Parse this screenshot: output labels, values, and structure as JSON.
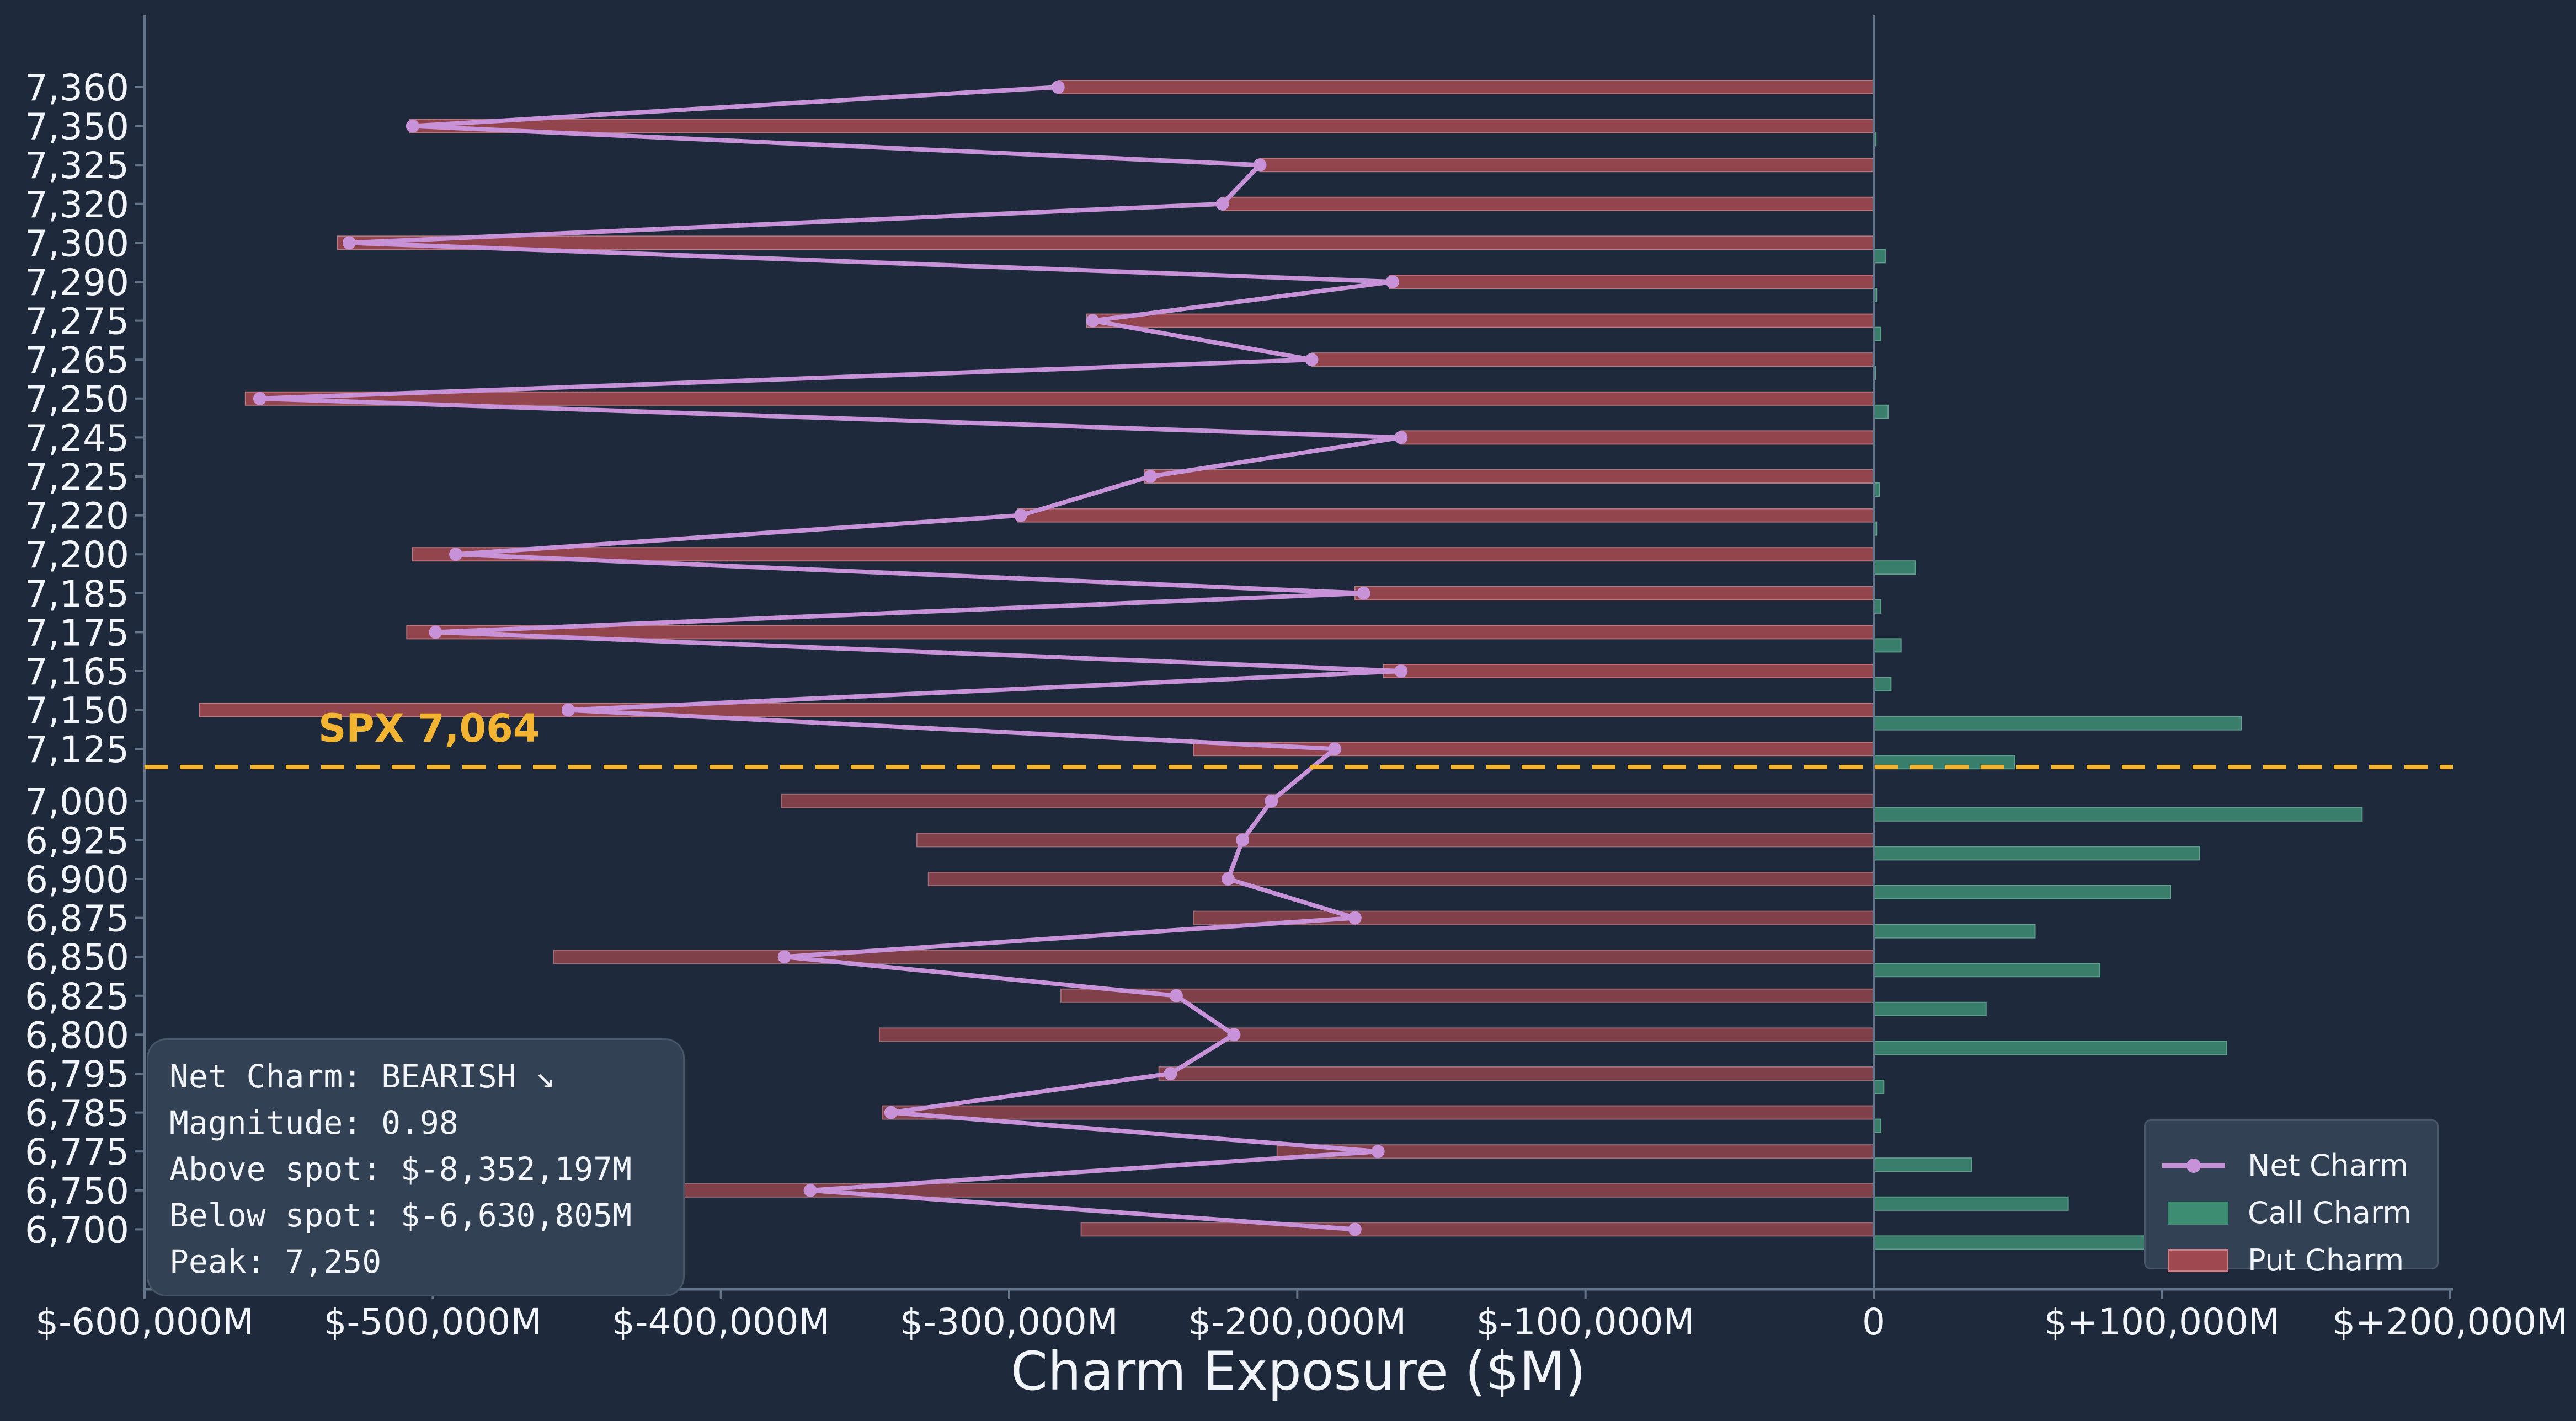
{
  "chart_data": {
    "type": "bar",
    "orientation": "horizontal",
    "xlabel": "Charm Exposure ($M)",
    "ylabel": "",
    "xlim": [
      -600000,
      200000
    ],
    "xticks": [
      -600000,
      -500000,
      -400000,
      -300000,
      -200000,
      -100000,
      0,
      100000,
      200000
    ],
    "xtick_labels": [
      "$-600,000M",
      "$-500,000M",
      "$-400,000M",
      "$-300,000M",
      "$-200,000M",
      "$-100,000M",
      "0",
      "$+100,000M",
      "$+200,000M"
    ],
    "strikes": [
      "7,360",
      "7,350",
      "7,325",
      "7,320",
      "7,300",
      "7,290",
      "7,275",
      "7,265",
      "7,250",
      "7,245",
      "7,225",
      "7,220",
      "7,200",
      "7,185",
      "7,175",
      "7,165",
      "7,150",
      "7,125",
      "7,000",
      "6,925",
      "6,900",
      "6,875",
      "6,850",
      "6,825",
      "6,800",
      "6,795",
      "6,785",
      "6,775",
      "6,750",
      "6,700"
    ],
    "series": [
      {
        "name": "Net Charm",
        "kind": "line",
        "color": "#c792d8",
        "values": [
          -283000,
          -507000,
          -213000,
          -226000,
          -529000,
          -167000,
          -271000,
          -195000,
          -560000,
          -164000,
          -251000,
          -296000,
          -492000,
          -177000,
          -499000,
          -164000,
          -453000,
          -187000,
          -209000,
          -219000,
          -224000,
          -180000,
          -378000,
          -242000,
          -222000,
          -244000,
          -341000,
          -172000,
          -369000,
          -180000
        ]
      },
      {
        "name": "Call Charm",
        "kind": "bar",
        "color": "#3d8d73",
        "values": [
          0,
          800,
          0,
          0,
          4000,
          1000,
          2500,
          500,
          5000,
          0,
          2000,
          1000,
          14500,
          2500,
          9500,
          6000,
          127500,
          49000,
          169500,
          113000,
          103000,
          56000,
          78500,
          39000,
          122500,
          3500,
          2500,
          34000,
          67500,
          95000
        ]
      },
      {
        "name": "Put Charm",
        "kind": "bar",
        "color": "#a0484f",
        "values": [
          -283000,
          -508000,
          -213000,
          -226000,
          -533000,
          -168000,
          -273000,
          -195000,
          -565000,
          -164000,
          -253000,
          -297000,
          -507000,
          -180000,
          -509000,
          -170000,
          -581000,
          -236000,
          -379000,
          -332000,
          -328000,
          -236000,
          -458000,
          -282000,
          -345000,
          -248000,
          -344000,
          -207000,
          -436000,
          -275000
        ]
      }
    ],
    "spot_line": {
      "value": 7064,
      "label": "SPX 7,064",
      "color": "#f2b431",
      "style": "dashed"
    },
    "legend_position": "lower-right",
    "grid": false
  },
  "info_box": {
    "lines": [
      "Net Charm: BEARISH ↘",
      "Magnitude: 0.98",
      "Above spot: $-8,352,197M",
      "Below spot: $-6,630,805M",
      "Peak: 7,250"
    ]
  },
  "colors": {
    "background": "#1e2a3b",
    "axis": "#64748b",
    "text": "#f1f5f9",
    "net": "#c792d8",
    "call": "#3d8d73",
    "put": "#a0484f",
    "spot": "#f2b431"
  }
}
